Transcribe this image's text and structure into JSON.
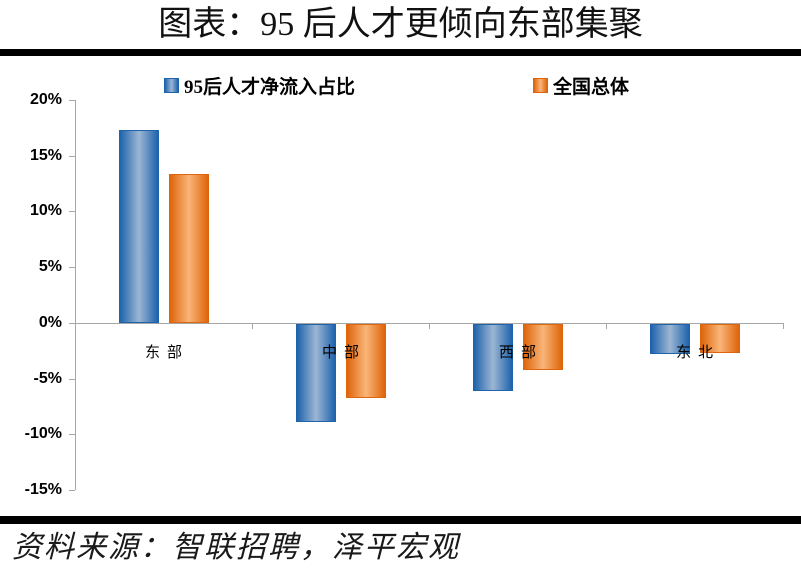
{
  "title": "图表：95 后人才更倾向东部集聚",
  "source_note": "资料来源：智联招聘，泽平宏观",
  "chart_data": {
    "type": "bar",
    "title": "图表：95 后人才更倾向东部集聚",
    "categories": [
      "东部",
      "中部",
      "西部",
      "东北"
    ],
    "series": [
      {
        "name": "95后人才净流入占比",
        "values": [
          17.3,
          -8.8,
          -6.0,
          -2.7
        ],
        "color": {
          "edge": "#1E63AC",
          "center": "#9CB6D3"
        }
      },
      {
        "name": "全国总体",
        "values": [
          13.4,
          -6.6,
          -4.1,
          -2.6
        ],
        "color": {
          "edge": "#DE650B",
          "center": "#F9B579"
        }
      }
    ],
    "xlabel": "",
    "ylabel": "",
    "ylim": [
      -15,
      20
    ],
    "ytick_step": 5,
    "ytick_labels": [
      "20%",
      "15%",
      "10%",
      "5%",
      "0%",
      "-5%",
      "-10%",
      "-15%"
    ],
    "legend_position": "top",
    "grid": false,
    "axis_color": "#A6A6A6",
    "rule_color": "#000000"
  }
}
